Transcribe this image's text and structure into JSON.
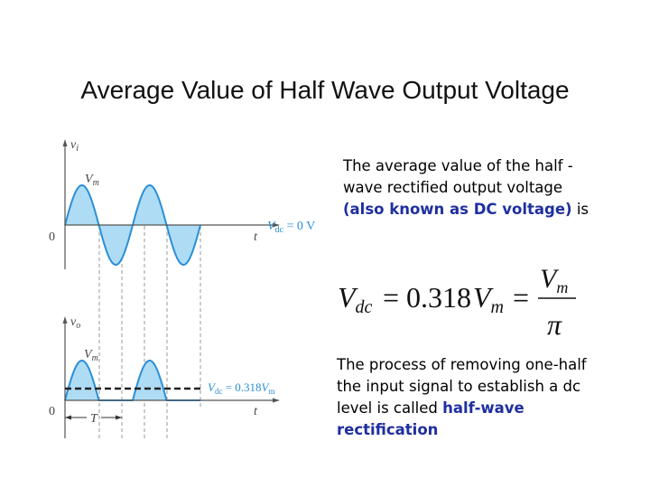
{
  "title": "Average Value of Half Wave Output Voltage",
  "paragraph1": {
    "before": "The average value of the half -wave rectified output voltage",
    "highlight": "(also known as DC voltage)",
    "after": "is"
  },
  "formula": {
    "lhs_symbol": "V",
    "lhs_subscript": "dc",
    "equals": "=",
    "coefficient": "0.318",
    "vm_symbol": "V",
    "vm_subscript": "m",
    "numerator_symbol": "V",
    "numerator_subscript": "m",
    "denominator": "π"
  },
  "paragraph2": {
    "before": "The process of removing one-half the input signal to establish a dc level is called",
    "highlight": "half-wave rectification"
  },
  "input_plot": {
    "y_axis_symbol": "v",
    "y_axis_subscript": "i",
    "peak_symbol": "V",
    "peak_subscript": "m",
    "origin_label": "0",
    "t_label": "t",
    "dc_symbol": "V",
    "dc_subscript": "dc",
    "dc_value": " = 0 V"
  },
  "output_plot": {
    "y_axis_symbol": "v",
    "y_axis_subscript": "o",
    "peak_symbol": "V",
    "peak_subscript": "m",
    "origin_label": "0",
    "t_label": "t",
    "period_label": "T",
    "dc_symbol": "V",
    "dc_subscript": "dc",
    "dc_value": " = 0.318",
    "dc_vm_symbol": "V",
    "dc_vm_subscript": "m"
  },
  "colors": {
    "fill": "#aedcf5",
    "wave": "#2b8fd6",
    "highlight": "#1f2fa0",
    "axis": "#555555"
  }
}
